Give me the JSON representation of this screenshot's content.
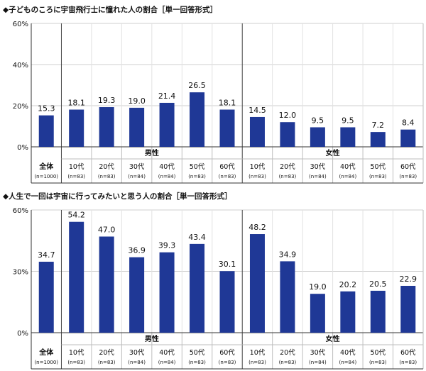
{
  "chart_data": [
    {
      "type": "bar",
      "title": "◆子どものころに宇宙飛行士に憧れた人の割合［単一回答形式］",
      "yticks": [
        "60%",
        "40%",
        "20%",
        "0%"
      ],
      "ylim": [
        0,
        60
      ],
      "grid": true,
      "bar_color": "#1f3896",
      "categories": [
        {
          "label": "全体",
          "sub": "(n=1000)",
          "value": 15.3,
          "value_label": "15.3"
        },
        {
          "label": "10代",
          "sub": "(n=83)",
          "value": 18.1,
          "value_label": "18.1"
        },
        {
          "label": "20代",
          "sub": "(n=83)",
          "value": 19.3,
          "value_label": "19.3"
        },
        {
          "label": "30代",
          "sub": "(n=84)",
          "value": 19.0,
          "value_label": "19.0"
        },
        {
          "label": "40代",
          "sub": "(n=84)",
          "value": 21.4,
          "value_label": "21.4"
        },
        {
          "label": "50代",
          "sub": "(n=83)",
          "value": 26.5,
          "value_label": "26.5"
        },
        {
          "label": "60代",
          "sub": "(n=83)",
          "value": 18.1,
          "value_label": "18.1"
        },
        {
          "label": "10代",
          "sub": "(n=83)",
          "value": 14.5,
          "value_label": "14.5"
        },
        {
          "label": "20代",
          "sub": "(n=83)",
          "value": 12.0,
          "value_label": "12.0"
        },
        {
          "label": "30代",
          "sub": "(n=84)",
          "value": 9.5,
          "value_label": "9.5"
        },
        {
          "label": "40代",
          "sub": "(n=84)",
          "value": 9.5,
          "value_label": "9.5"
        },
        {
          "label": "50代",
          "sub": "(n=83)",
          "value": 7.2,
          "value_label": "7.2"
        },
        {
          "label": "60代",
          "sub": "(n=83)",
          "value": 8.4,
          "value_label": "8.4"
        }
      ],
      "groups": [
        {
          "label": "男性",
          "from": 1,
          "to": 6
        },
        {
          "label": "女性",
          "from": 7,
          "to": 12
        }
      ]
    },
    {
      "type": "bar",
      "title": "◆人生で一回は宇宙に行ってみたいと思う人の割合［単一回答形式］",
      "yticks": [
        "60%",
        "30%",
        "0%"
      ],
      "ylim": [
        0,
        60
      ],
      "grid": true,
      "bar_color": "#1f3896",
      "categories": [
        {
          "label": "全体",
          "sub": "(n=1000)",
          "value": 34.7,
          "value_label": "34.7"
        },
        {
          "label": "10代",
          "sub": "(n=83)",
          "value": 54.2,
          "value_label": "54.2"
        },
        {
          "label": "20代",
          "sub": "(n=83)",
          "value": 47.0,
          "value_label": "47.0"
        },
        {
          "label": "30代",
          "sub": "(n=84)",
          "value": 36.9,
          "value_label": "36.9"
        },
        {
          "label": "40代",
          "sub": "(n=84)",
          "value": 39.3,
          "value_label": "39.3"
        },
        {
          "label": "50代",
          "sub": "(n=83)",
          "value": 43.4,
          "value_label": "43.4"
        },
        {
          "label": "60代",
          "sub": "(n=83)",
          "value": 30.1,
          "value_label": "30.1"
        },
        {
          "label": "10代",
          "sub": "(n=83)",
          "value": 48.2,
          "value_label": "48.2"
        },
        {
          "label": "20代",
          "sub": "(n=83)",
          "value": 34.9,
          "value_label": "34.9"
        },
        {
          "label": "30代",
          "sub": "(n=84)",
          "value": 19.0,
          "value_label": "19.0"
        },
        {
          "label": "40代",
          "sub": "(n=84)",
          "value": 20.2,
          "value_label": "20.2"
        },
        {
          "label": "50代",
          "sub": "(n=83)",
          "value": 20.5,
          "value_label": "20.5"
        },
        {
          "label": "60代",
          "sub": "(n=83)",
          "value": 22.9,
          "value_label": "22.9"
        }
      ],
      "groups": [
        {
          "label": "男性",
          "from": 1,
          "to": 6
        },
        {
          "label": "女性",
          "from": 7,
          "to": 12
        }
      ]
    }
  ]
}
